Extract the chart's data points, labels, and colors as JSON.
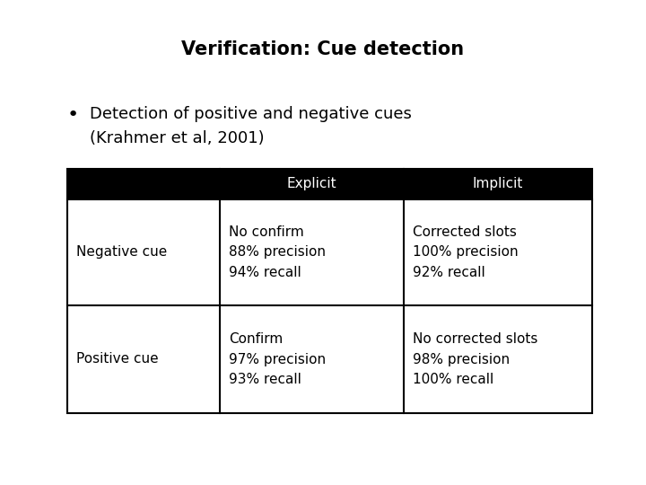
{
  "title": "Verification: Cue detection",
  "bullet_text_line1": "Detection of positive and negative cues",
  "bullet_text_line2": "(Krahmer et al, 2001)",
  "header_col1": "",
  "header_col2": "Explicit",
  "header_col3": "Implicit",
  "row1_col1": "Negative cue",
  "row1_col2": "No confirm\n88% precision\n94% recall",
  "row1_col3": "Corrected slots\n100% precision\n92% recall",
  "row2_col1": "Positive cue",
  "row2_col2": "Confirm\n97% precision\n93% recall",
  "row2_col3": "No corrected slots\n98% precision\n100% recall",
  "background_color": "#ffffff",
  "header_bg": "#000000",
  "header_fg": "#ffffff",
  "cell_bg": "#ffffff",
  "cell_fg": "#000000",
  "border_color": "#000000",
  "title_fontsize": 15,
  "bullet_fontsize": 13,
  "table_fontsize": 11,
  "font_family": "DejaVu Sans"
}
